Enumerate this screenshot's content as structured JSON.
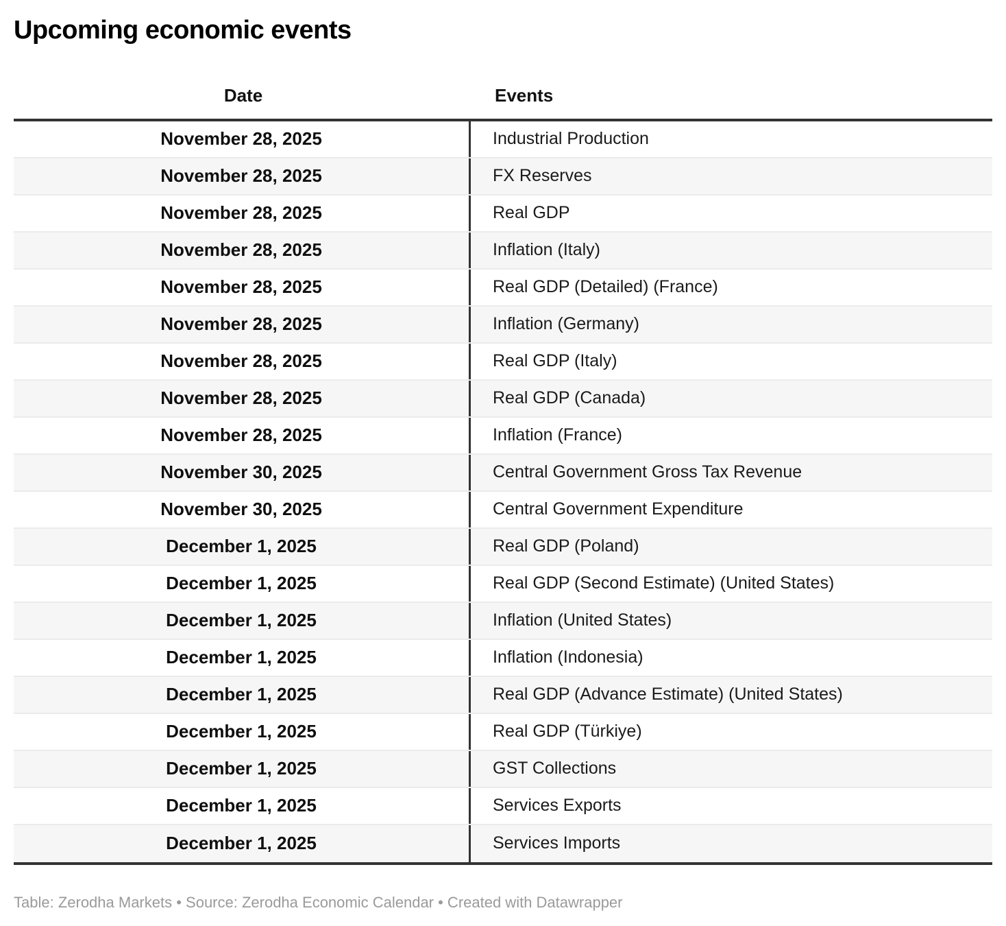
{
  "title": "Upcoming economic events",
  "footer": "Table: Zerodha Markets • Source: Zerodha Economic Calendar • Created with Datawrapper",
  "colors": {
    "border_dark": "#333333",
    "stripe": "#f6f6f6",
    "row_separator": "#ebebeb",
    "title_text": "#000000",
    "body_text": "#1a1a1a",
    "footer_text": "#9a9a9a"
  },
  "chart_data": {
    "type": "table",
    "title": "Upcoming economic events",
    "columns": [
      "Date",
      "Events"
    ],
    "rows": [
      [
        "November 28, 2025",
        "Industrial Production"
      ],
      [
        "November 28, 2025",
        "FX Reserves"
      ],
      [
        "November 28, 2025",
        "Real GDP"
      ],
      [
        "November 28, 2025",
        "Inflation (Italy)"
      ],
      [
        "November 28, 2025",
        "Real GDP (Detailed) (France)"
      ],
      [
        "November 28, 2025",
        "Inflation (Germany)"
      ],
      [
        "November 28, 2025",
        "Real GDP (Italy)"
      ],
      [
        "November 28, 2025",
        "Real GDP (Canada)"
      ],
      [
        "November 28, 2025",
        "Inflation (France)"
      ],
      [
        "November 30, 2025",
        "Central Government Gross Tax Revenue"
      ],
      [
        "November 30, 2025",
        "Central Government Expenditure"
      ],
      [
        "December 1, 2025",
        "Real GDP (Poland)"
      ],
      [
        "December 1, 2025",
        "Real GDP (Second Estimate) (United States)"
      ],
      [
        "December 1, 2025",
        "Inflation (United States)"
      ],
      [
        "December 1, 2025",
        "Inflation (Indonesia)"
      ],
      [
        "December 1, 2025",
        "Real GDP (Advance Estimate) (United States)"
      ],
      [
        "December 1, 2025",
        "Real GDP (Türkiye)"
      ],
      [
        "December 1, 2025",
        "GST Collections"
      ],
      [
        "December 1, 2025",
        "Services Exports"
      ],
      [
        "December 1, 2025",
        "Services Imports"
      ]
    ],
    "layout": {
      "date_column_align": "center",
      "events_column_align": "left",
      "striped_rows": true,
      "legend": "none",
      "grid": "row-separators"
    }
  }
}
